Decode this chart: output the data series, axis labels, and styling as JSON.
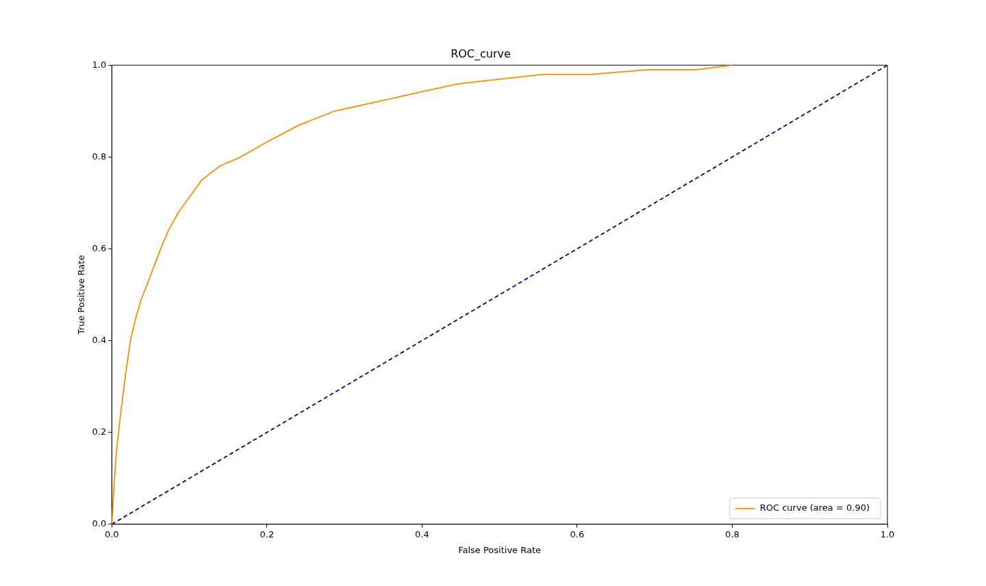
{
  "chart_data": {
    "type": "line",
    "title": "ROC_curve",
    "xlabel": "False Positive Rate",
    "ylabel": "True Positive Rate",
    "xlim": [
      0,
      1
    ],
    "ylim": [
      0,
      1
    ],
    "xticks": [
      {
        "value": 0,
        "label": "0.0"
      },
      {
        "value": 0.2,
        "label": "0.2"
      },
      {
        "value": 0.4,
        "label": "0.4"
      },
      {
        "value": 0.6,
        "label": "0.6"
      },
      {
        "value": 0.8,
        "label": "0.8"
      },
      {
        "value": 1,
        "label": "1.0"
      }
    ],
    "yticks": [
      {
        "value": 0,
        "label": "0.0"
      },
      {
        "value": 0.2,
        "label": "0.2"
      },
      {
        "value": 0.4,
        "label": "0.4"
      },
      {
        "value": 0.6,
        "label": "0.6"
      },
      {
        "value": 0.8,
        "label": "0.8"
      },
      {
        "value": 1,
        "label": "1.0"
      }
    ],
    "grid": false,
    "legend": "bottom right",
    "marker": "none",
    "series": [
      {
        "name": "ROC curve (area = 0.90)",
        "color": "#ff8c00",
        "line_style": "solid",
        "x": [
          0,
          0.003,
          0.006,
          0.012,
          0.018,
          0.024,
          0.031,
          0.038,
          0.045,
          0.054,
          0.063,
          0.073,
          0.086,
          0.099,
          0.116,
          0.139,
          0.166,
          0.197,
          0.242,
          0.287,
          0.341,
          0.394,
          0.448,
          0.502,
          0.556,
          0.618,
          0.69,
          0.753,
          0.8
        ],
        "values": [
          0,
          0.09,
          0.16,
          0.25,
          0.33,
          0.4,
          0.45,
          0.49,
          0.52,
          0.56,
          0.6,
          0.64,
          0.68,
          0.71,
          0.75,
          0.78,
          0.8,
          0.83,
          0.87,
          0.9,
          0.92,
          0.94,
          0.96,
          0.97,
          0.98,
          0.98,
          0.99,
          0.99,
          1
        ]
      },
      {
        "color": "#000080",
        "line_style": "dashed",
        "x": [
          0,
          1
        ],
        "values": [
          0,
          1
        ]
      }
    ]
  }
}
